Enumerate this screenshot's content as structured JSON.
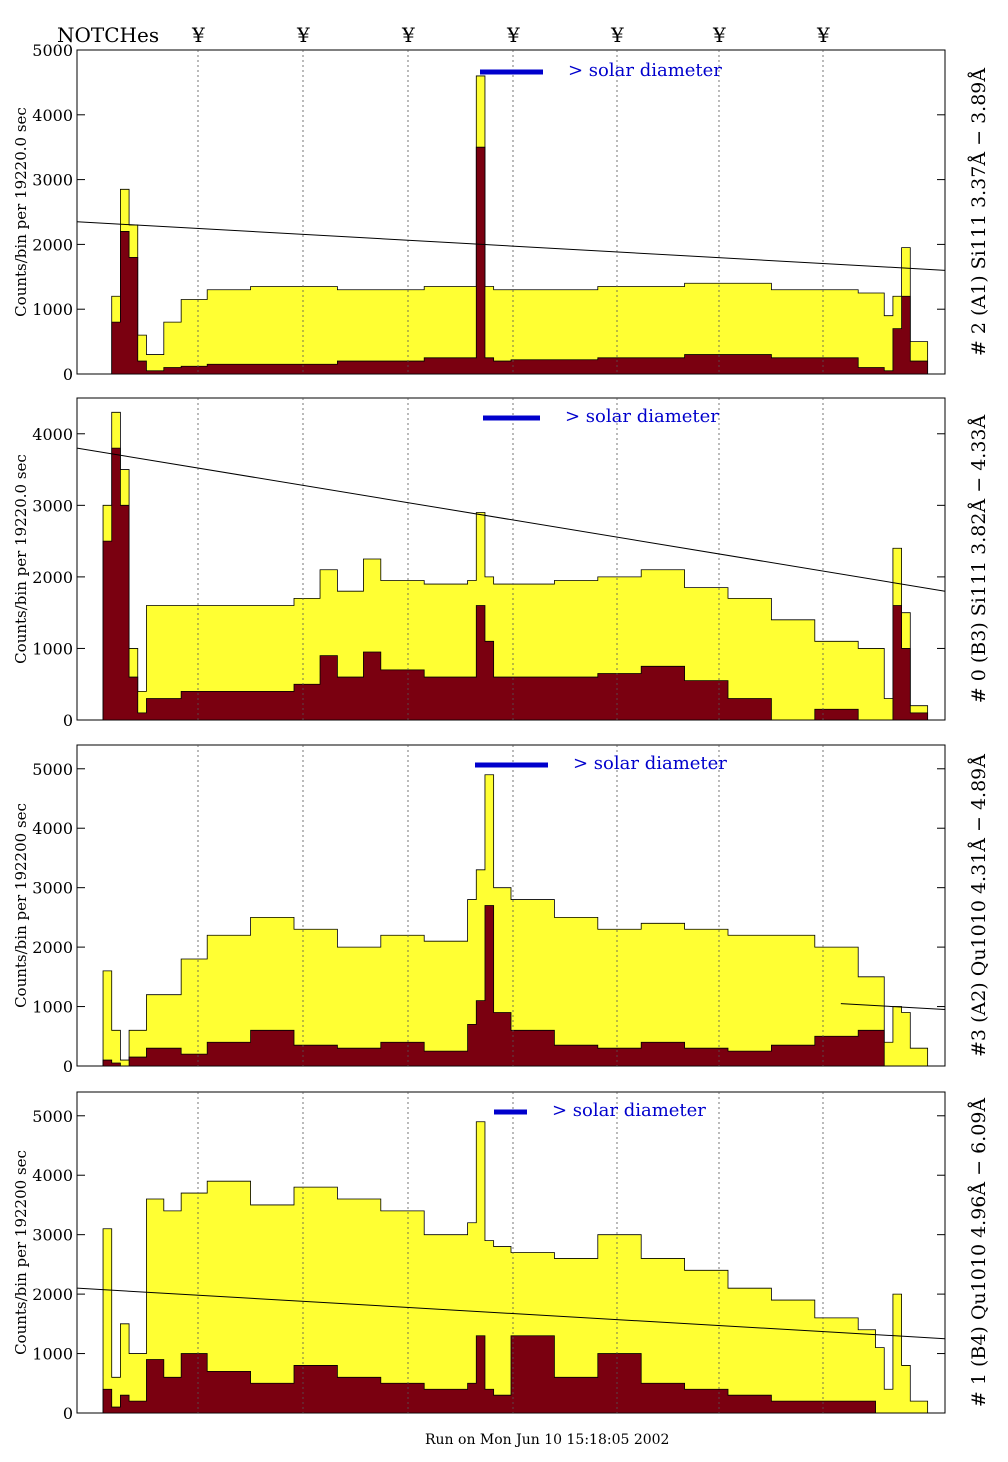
{
  "header": {
    "notches_label": "NOTCHes",
    "notch_symbol": "¥"
  },
  "footer": {
    "run_text": "Run on Mon Jun 10 15:18:05 2002"
  },
  "colors": {
    "fill_total": "#ffff33",
    "fill_lower": "#7a0010",
    "solar_bar": "#0000cc",
    "line": "#000000"
  },
  "chart_data": [
    {
      "type": "area",
      "label": "# 2 (A1) Si111  3.37Å − 3.89Å",
      "ylabel": "Counts/bin per  19220.0 sec",
      "ylim": [
        0,
        5000
      ],
      "yticks": [
        0,
        1000,
        2000,
        3000,
        4000,
        5000
      ],
      "xlim": [
        0,
        100
      ],
      "annotation": "> solar diameter",
      "series": [
        {
          "name": "total",
          "x": [
            0,
            3,
            4,
            5,
            6,
            7,
            8,
            10,
            12,
            15,
            20,
            30,
            40,
            45,
            46,
            47,
            48,
            50,
            60,
            70,
            80,
            90,
            93,
            94,
            95,
            96,
            98,
            100
          ],
          "values": [
            0,
            0,
            1200,
            2850,
            2300,
            600,
            300,
            800,
            1150,
            1300,
            1350,
            1300,
            1350,
            1350,
            4600,
            1350,
            1300,
            1300,
            1350,
            1400,
            1300,
            1250,
            900,
            1200,
            1950,
            500,
            0,
            0
          ]
        },
        {
          "name": "lower",
          "x": [
            0,
            3,
            4,
            5,
            6,
            7,
            8,
            10,
            12,
            15,
            20,
            30,
            40,
            45,
            46,
            47,
            48,
            50,
            60,
            70,
            80,
            90,
            93,
            94,
            95,
            96,
            98,
            100
          ],
          "values": [
            0,
            0,
            800,
            2200,
            1800,
            200,
            50,
            100,
            120,
            150,
            150,
            200,
            250,
            250,
            3500,
            250,
            200,
            220,
            250,
            300,
            250,
            100,
            50,
            700,
            1200,
            200,
            0,
            0
          ]
        }
      ],
      "trend": [
        [
          0,
          2350
        ],
        [
          100,
          1600
        ]
      ]
    },
    {
      "type": "area",
      "label": "# 0 (B3) Si111  3.82Å − 4.33Å",
      "ylabel": "Counts/bin per  19220.0 sec",
      "ylim": [
        0,
        4500
      ],
      "yticks": [
        0,
        1000,
        2000,
        3000,
        4000
      ],
      "xlim": [
        0,
        100
      ],
      "annotation": "> solar diameter",
      "series": [
        {
          "name": "total",
          "x": [
            0,
            2,
            3,
            4,
            5,
            6,
            7,
            8,
            12,
            20,
            25,
            28,
            30,
            33,
            35,
            40,
            45,
            46,
            47,
            48,
            55,
            60,
            65,
            70,
            75,
            80,
            85,
            90,
            93,
            94,
            95,
            96,
            98,
            100
          ],
          "values": [
            0,
            0,
            3000,
            4300,
            3500,
            1000,
            400,
            1600,
            1600,
            1600,
            1700,
            2100,
            1800,
            2250,
            1950,
            1900,
            1950,
            2900,
            2000,
            1900,
            1950,
            2000,
            2100,
            1850,
            1700,
            1400,
            1100,
            1000,
            300,
            2400,
            1500,
            200,
            0,
            0
          ]
        },
        {
          "name": "lower",
          "x": [
            0,
            2,
            3,
            4,
            5,
            6,
            7,
            8,
            12,
            20,
            25,
            28,
            30,
            33,
            35,
            40,
            45,
            46,
            47,
            48,
            55,
            60,
            65,
            70,
            75,
            80,
            85,
            90,
            93,
            94,
            95,
            96,
            98,
            100
          ],
          "values": [
            0,
            0,
            2500,
            3800,
            3000,
            600,
            100,
            300,
            400,
            400,
            500,
            900,
            600,
            950,
            700,
            600,
            600,
            1600,
            1100,
            600,
            600,
            650,
            750,
            550,
            300,
            0,
            150,
            0,
            0,
            1600,
            1000,
            100,
            0,
            0
          ]
        }
      ],
      "trend": [
        [
          0,
          3800
        ],
        [
          100,
          1800
        ]
      ]
    },
    {
      "type": "area",
      "label": "#3 (A2) Qu1010  4.31Å − 4.89Å",
      "ylabel": "Counts/bin per  192200 sec",
      "ylim": [
        0,
        5400
      ],
      "yticks": [
        0,
        1000,
        2000,
        3000,
        4000,
        5000
      ],
      "xlim": [
        0,
        100
      ],
      "annotation": "> solar diameter",
      "series": [
        {
          "name": "total",
          "x": [
            0,
            2,
            3,
            4,
            5,
            6,
            8,
            12,
            15,
            20,
            25,
            30,
            35,
            40,
            45,
            46,
            47,
            48,
            50,
            55,
            60,
            65,
            70,
            75,
            80,
            85,
            90,
            93,
            94,
            95,
            96,
            98,
            100
          ],
          "values": [
            0,
            0,
            1600,
            600,
            100,
            600,
            1200,
            1800,
            2200,
            2500,
            2300,
            2000,
            2200,
            2100,
            2800,
            3300,
            4900,
            3000,
            2800,
            2500,
            2300,
            2400,
            2300,
            2200,
            2200,
            2000,
            1500,
            400,
            1000,
            900,
            300,
            0,
            0
          ]
        },
        {
          "name": "lower",
          "x": [
            0,
            2,
            3,
            4,
            5,
            6,
            8,
            12,
            15,
            20,
            25,
            30,
            35,
            40,
            45,
            46,
            47,
            48,
            50,
            55,
            60,
            65,
            70,
            75,
            80,
            85,
            90,
            93,
            94,
            95,
            96,
            98,
            100
          ],
          "values": [
            0,
            0,
            100,
            50,
            0,
            150,
            300,
            200,
            400,
            600,
            350,
            300,
            400,
            250,
            700,
            1100,
            2700,
            900,
            600,
            350,
            300,
            400,
            300,
            250,
            350,
            500,
            600,
            0,
            0,
            0,
            0,
            0,
            0
          ]
        }
      ],
      "trend": [
        [
          88,
          1050
        ],
        [
          100,
          950
        ]
      ]
    },
    {
      "type": "area",
      "label": "# 1 (B4) Qu1010 4.96Å − 6.09Å",
      "ylabel": "Counts/bin per  192200 sec",
      "ylim": [
        0,
        5400
      ],
      "yticks": [
        0,
        1000,
        2000,
        3000,
        4000,
        5000
      ],
      "xlim": [
        0,
        100
      ],
      "annotation": "> solar diameter",
      "series": [
        {
          "name": "total",
          "x": [
            0,
            2,
            3,
            4,
            5,
            6,
            8,
            10,
            12,
            15,
            20,
            25,
            30,
            35,
            40,
            45,
            46,
            47,
            48,
            50,
            55,
            60,
            65,
            70,
            75,
            80,
            85,
            90,
            92,
            93,
            94,
            95,
            96,
            98,
            100
          ],
          "values": [
            0,
            0,
            3100,
            600,
            1500,
            1000,
            3600,
            3400,
            3700,
            3900,
            3500,
            3800,
            3600,
            3400,
            3000,
            3200,
            4900,
            2900,
            2800,
            2700,
            2600,
            3000,
            2600,
            2400,
            2100,
            1900,
            1600,
            1400,
            1100,
            400,
            2000,
            800,
            200,
            0,
            0
          ]
        },
        {
          "name": "lower",
          "x": [
            0,
            2,
            3,
            4,
            5,
            6,
            8,
            10,
            12,
            15,
            20,
            25,
            30,
            35,
            40,
            45,
            46,
            47,
            48,
            50,
            55,
            60,
            65,
            70,
            75,
            80,
            85,
            90,
            92,
            93,
            94,
            95,
            96,
            98,
            100
          ],
          "values": [
            0,
            0,
            400,
            100,
            300,
            200,
            900,
            600,
            1000,
            700,
            500,
            800,
            600,
            500,
            400,
            500,
            1300,
            400,
            300,
            1300,
            600,
            1000,
            500,
            400,
            300,
            200,
            200,
            200,
            0,
            0,
            0,
            0,
            0,
            0,
            0
          ]
        }
      ],
      "trend": [
        [
          0,
          2100
        ],
        [
          100,
          1250
        ]
      ]
    }
  ]
}
